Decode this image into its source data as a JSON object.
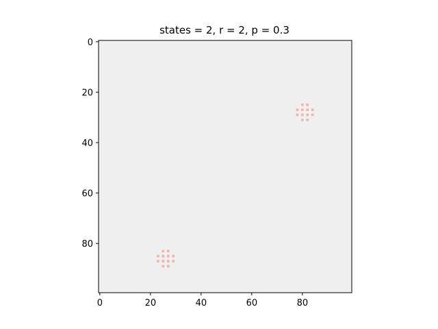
{
  "chart_data": {
    "type": "heatmap",
    "title": "states = 2, r = 2, p = 0.3",
    "grid_size": [
      100,
      100
    ],
    "x_range": [
      -0.5,
      99.5
    ],
    "y_range": [
      -0.5,
      99.5
    ],
    "y_inverted": true,
    "xticks": [
      0,
      20,
      40,
      60,
      80
    ],
    "yticks": [
      0,
      20,
      40,
      60,
      80
    ],
    "xlabel": "",
    "ylabel": "",
    "grid": false,
    "background_color": "#f0f0f0",
    "active_color": "#f4b3aa",
    "active_cells": [
      [
        25,
        80
      ],
      [
        25,
        82
      ],
      [
        27,
        78
      ],
      [
        27,
        80
      ],
      [
        27,
        82
      ],
      [
        27,
        84
      ],
      [
        29,
        78
      ],
      [
        29,
        80
      ],
      [
        29,
        82
      ],
      [
        29,
        84
      ],
      [
        31,
        80
      ],
      [
        31,
        82
      ],
      [
        83,
        25
      ],
      [
        83,
        27
      ],
      [
        85,
        23
      ],
      [
        85,
        25
      ],
      [
        85,
        27
      ],
      [
        85,
        29
      ],
      [
        87,
        23
      ],
      [
        87,
        25
      ],
      [
        87,
        27
      ],
      [
        87,
        29
      ],
      [
        89,
        25
      ],
      [
        89,
        27
      ]
    ]
  }
}
